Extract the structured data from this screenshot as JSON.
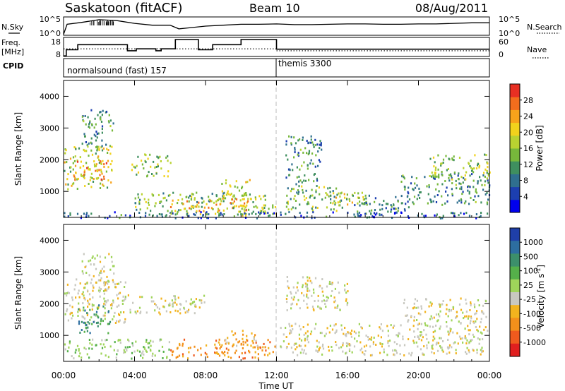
{
  "header": {
    "station": "Saskatoon (fitACF)",
    "beam": "Beam 10",
    "date": "08/Aug/2011"
  },
  "params": {
    "nsky_label": "N.Sky",
    "nsky_ticks": [
      "10^5",
      "10^0"
    ],
    "nsearch_label": "N.Search",
    "nsearch_ticks": [
      "10^5",
      "10^0"
    ],
    "freq_label_1": "Freq.",
    "freq_label_2": "[MHz]",
    "freq_ticks": [
      "18",
      "8"
    ],
    "nave_label": "Nave",
    "nave_ticks": [
      "60",
      "0"
    ],
    "cpid_label": "CPID",
    "modes": [
      "normalsound (fast) 157",
      "themis 3300"
    ],
    "mode_change_hour": 12
  },
  "chart_data": [
    {
      "type": "line",
      "name": "nsky-nsearch",
      "x_range": [
        0,
        24
      ],
      "hours": [
        0,
        0.2,
        1,
        2,
        3,
        4,
        5,
        6,
        6.5,
        7,
        8,
        9,
        10,
        11,
        12,
        13,
        14,
        15,
        16,
        17,
        18,
        19,
        20,
        21,
        22,
        23,
        24
      ],
      "nsky": [
        0.05,
        0.6,
        0.7,
        0.85,
        0.8,
        0.65,
        0.55,
        0.55,
        0.35,
        0.4,
        0.5,
        0.55,
        0.6,
        0.6,
        0.62,
        0.58,
        0.58,
        0.6,
        0.62,
        0.62,
        0.6,
        0.6,
        0.62,
        0.62,
        0.65,
        0.68,
        0.68
      ]
    },
    {
      "type": "line",
      "name": "freq-nave",
      "x_range": [
        0,
        24
      ],
      "freq_ylim": [
        8,
        18
      ],
      "freq_steps": [
        {
          "from": 0,
          "to": 0.15,
          "mhz": 8.3
        },
        {
          "from": 0.15,
          "to": 0.8,
          "mhz": 11.5
        },
        {
          "from": 0.8,
          "to": 3.6,
          "mhz": 14.2
        },
        {
          "from": 3.6,
          "to": 4.1,
          "mhz": 11.0
        },
        {
          "from": 4.1,
          "to": 5.2,
          "mhz": 12.0
        },
        {
          "from": 5.2,
          "to": 5.5,
          "mhz": 11.0
        },
        {
          "from": 5.5,
          "to": 6.3,
          "mhz": 12.0
        },
        {
          "from": 6.3,
          "to": 7.6,
          "mhz": 16.9
        },
        {
          "from": 7.6,
          "to": 8.4,
          "mhz": 11.5
        },
        {
          "from": 8.4,
          "to": 10.0,
          "mhz": 14.2
        },
        {
          "from": 10.0,
          "to": 12.0,
          "mhz": 16.9
        },
        {
          "from": 12.0,
          "to": 24.0,
          "mhz": 11.8
        }
      ],
      "nave_dotted": [
        {
          "from": 0,
          "to": 12,
          "value": 24
        },
        {
          "from": 12,
          "to": 24,
          "value": 18
        }
      ]
    },
    {
      "type": "heatmap",
      "name": "power",
      "xlabel": "",
      "ylabel": "Slant Range [km]",
      "x_range": [
        0,
        24
      ],
      "ylim": [
        180,
        4500
      ],
      "yticks": [
        1000,
        2000,
        3000,
        4000
      ],
      "colorbar": {
        "label": "Power [dB]",
        "ticks": [
          "4",
          "8",
          "12",
          "16",
          "20",
          "24",
          "28"
        ],
        "colors": [
          "#0000ee",
          "#1c3fb0",
          "#2f6f8f",
          "#3f8f5f",
          "#77b83b",
          "#b9d231",
          "#f1d21c",
          "#f7a31b",
          "#f36d1d",
          "#e82f23"
        ]
      },
      "regions": [
        {
          "h0": 0,
          "h1": 2.7,
          "r0": 1100,
          "r1": 2500,
          "level": 0.55
        },
        {
          "h0": 0.5,
          "h1": 2.5,
          "r0": 1400,
          "r1": 2000,
          "level": 0.75
        },
        {
          "h0": 1.0,
          "h1": 2.8,
          "r0": 2400,
          "r1": 3600,
          "level": 0.3
        },
        {
          "h0": 3.8,
          "h1": 6.0,
          "r0": 1500,
          "r1": 2200,
          "level": 0.5
        },
        {
          "h0": 4.0,
          "h1": 11.5,
          "r0": 300,
          "r1": 1000,
          "level": 0.45
        },
        {
          "h0": 6.0,
          "h1": 10.5,
          "r0": 400,
          "r1": 800,
          "level": 0.75
        },
        {
          "h0": 8.8,
          "h1": 10.5,
          "r0": 800,
          "r1": 1400,
          "level": 0.6
        },
        {
          "h0": 9.5,
          "h1": 12.0,
          "r0": 200,
          "r1": 600,
          "level": 0.55
        },
        {
          "h0": 12.5,
          "h1": 14.5,
          "r0": 1200,
          "r1": 2800,
          "level": 0.3
        },
        {
          "h0": 12.5,
          "h1": 16.0,
          "r0": 400,
          "r1": 1200,
          "level": 0.45
        },
        {
          "h0": 14.5,
          "h1": 17.0,
          "r0": 600,
          "r1": 1000,
          "level": 0.6
        },
        {
          "h0": 16.0,
          "h1": 19.5,
          "r0": 300,
          "r1": 900,
          "level": 0.3
        },
        {
          "h0": 19.0,
          "h1": 24.0,
          "r0": 600,
          "r1": 1600,
          "level": 0.3
        },
        {
          "h0": 20.5,
          "h1": 24.0,
          "r0": 1400,
          "r1": 2200,
          "level": 0.5
        },
        {
          "h0": 0,
          "h1": 24,
          "r0": 180,
          "r1": 380,
          "level": 0.2
        }
      ]
    },
    {
      "type": "heatmap",
      "name": "velocity",
      "xlabel": "Time UT",
      "ylabel": "Slant Range [km]",
      "x_range": [
        0,
        24
      ],
      "xticks": [
        "00:00",
        "04:00",
        "08:00",
        "12:00",
        "16:00",
        "20:00",
        "00:00"
      ],
      "ylim": [
        180,
        4500
      ],
      "yticks": [
        1000,
        2000,
        3000,
        4000
      ],
      "colorbar": {
        "label": "Velocity [m s",
        "label_sup": "-1",
        "label_tail": "]",
        "ticks": [
          "1000",
          "500",
          "100",
          "25",
          "-25",
          "-100",
          "-500",
          "-1000"
        ],
        "colors": [
          "#1f3fa8",
          "#2d6ea0",
          "#3c8f6b",
          "#55b04a",
          "#9fd45a",
          "#c8c8c0",
          "#f2b31e",
          "#f3901b",
          "#ef5a1e",
          "#e01f1f"
        ]
      },
      "regions": [
        {
          "h0": 0,
          "h1": 3.5,
          "r0": 1400,
          "r1": 2800,
          "v": 5
        },
        {
          "h0": 0.8,
          "h1": 2.6,
          "r0": 1100,
          "r1": 2000,
          "v": 2
        },
        {
          "h0": 1.0,
          "h1": 2.8,
          "r0": 2400,
          "r1": 3600,
          "v": 5
        },
        {
          "h0": 3.5,
          "h1": 8.0,
          "r0": 1700,
          "r1": 2300,
          "v": 5
        },
        {
          "h0": 0,
          "h1": 6.0,
          "r0": 300,
          "r1": 900,
          "v": 4
        },
        {
          "h0": 6.0,
          "h1": 12.0,
          "r0": 300,
          "r1": 900,
          "v": 7
        },
        {
          "h0": 9.0,
          "h1": 11.0,
          "r0": 700,
          "r1": 1200,
          "v": 6
        },
        {
          "h0": 12.0,
          "h1": 24.0,
          "r0": 400,
          "r1": 1400,
          "v": 5
        },
        {
          "h0": 12.5,
          "h1": 16.0,
          "r0": 1800,
          "r1": 2900,
          "v": 5
        },
        {
          "h0": 19.0,
          "h1": 24.0,
          "r0": 1400,
          "r1": 2200,
          "v": 5
        }
      ]
    }
  ]
}
